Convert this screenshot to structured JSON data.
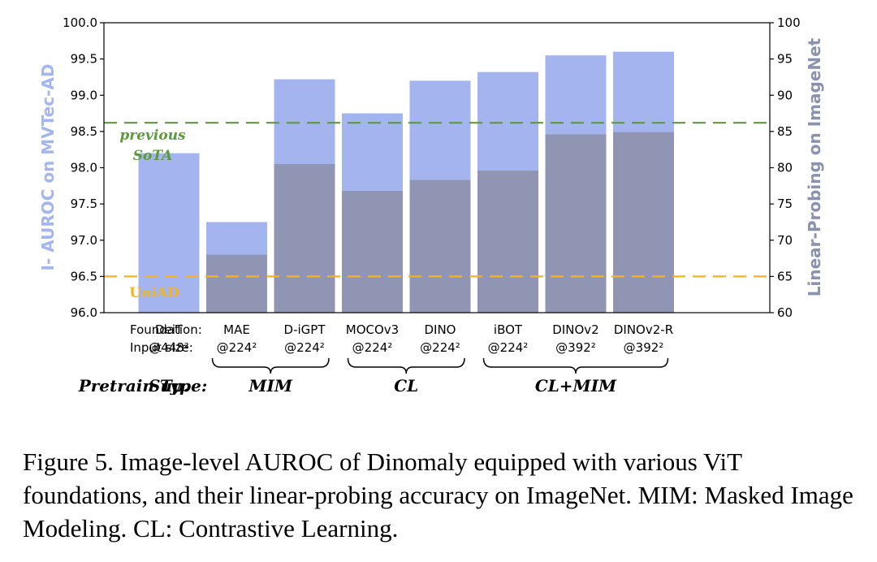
{
  "chart_data": {
    "type": "bar",
    "categories": [
      "DeiT",
      "MAE",
      "D-iGPT",
      "MOCOv3",
      "DINO",
      "iBOT",
      "DINOv2",
      "DINOv2-R"
    ],
    "input_sizes": [
      "@448²",
      "@224²",
      "@224²",
      "@224²",
      "@224²",
      "@224²",
      "@392²",
      "@392²"
    ],
    "series": [
      {
        "name": "I- AUROC on MVTec-AD",
        "axis": "left",
        "color": "#a3b4ee",
        "values": [
          98.2,
          97.25,
          99.22,
          98.75,
          99.2,
          99.32,
          99.55,
          99.6
        ]
      },
      {
        "name": "Linear-Probing on ImageNet",
        "axis": "right",
        "color": "#8f95b3",
        "values": [
          null,
          68.0,
          80.5,
          76.8,
          78.3,
          79.6,
          84.6,
          84.9
        ]
      }
    ],
    "ylabel_left": "I- AUROC on MVTec-AD",
    "ylabel_right": "Linear-Probing on ImageNet",
    "ylim_left": [
      96.0,
      100.0
    ],
    "ylim_right": [
      60,
      100
    ],
    "yticks_left": [
      "96.0",
      "96.5",
      "97.0",
      "97.5",
      "98.0",
      "98.5",
      "99.0",
      "99.5",
      "100.0"
    ],
    "yticks_right": [
      "60",
      "65",
      "70",
      "75",
      "80",
      "85",
      "90",
      "95",
      "100"
    ],
    "reference_lines": [
      {
        "label_lines": [
          "previous",
          "SoTA"
        ],
        "value": 98.62,
        "color": "#5c9a3a"
      },
      {
        "label_lines": [
          "UniAD"
        ],
        "value": 96.5,
        "color": "#f2b41f"
      }
    ],
    "row_labels": {
      "foundation": "Foundation:",
      "input_size": "Input size:"
    },
    "pretrain_label": "Pretrain Type:",
    "pretrain_groups": [
      {
        "label": "Sup.",
        "from": 0,
        "to": 0,
        "brace": false
      },
      {
        "label": "MIM",
        "from": 1,
        "to": 2,
        "brace": true
      },
      {
        "label": "CL",
        "from": 3,
        "to": 4,
        "brace": true
      },
      {
        "label": "CL+MIM",
        "from": 5,
        "to": 7,
        "brace": true
      }
    ]
  },
  "caption": "Figure 5. Image-level AUROC of Dinomaly equipped with various ViT foundations, and their linear-probing accuracy on ImageNet. MIM: Masked Image Modeling. CL: Contrastive Learning."
}
